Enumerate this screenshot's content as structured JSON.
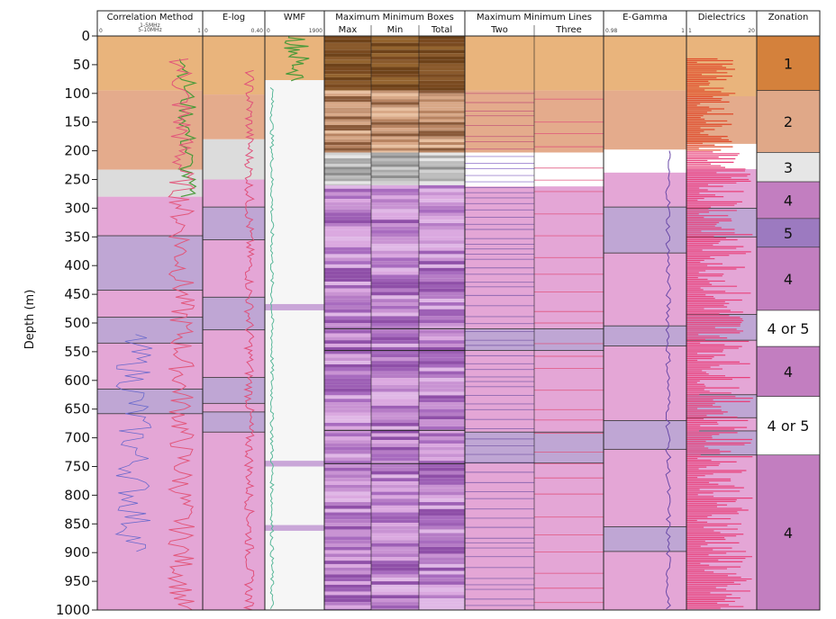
{
  "chart_data": {
    "type": "well-log",
    "ylabel": "Depth (m)",
    "ylim": [
      0,
      1000
    ],
    "y_ticks": [
      0,
      50,
      100,
      150,
      200,
      250,
      300,
      350,
      400,
      450,
      500,
      550,
      600,
      650,
      700,
      750,
      800,
      850,
      900,
      950,
      1000
    ],
    "tracks": [
      {
        "title": "Correlation Method",
        "scale_min": "0",
        "scale_max": "1",
        "legend": [
          "1-5MHz",
          "5-10MHz"
        ]
      },
      {
        "title": "E-log",
        "scale_min": "0",
        "scale_max": "0.40"
      },
      {
        "title": "WMF",
        "scale_min": "0",
        "scale_max": "1900"
      },
      {
        "title": "Maximum Minimum Boxes",
        "subtracks": [
          "Max",
          "Min",
          "Total"
        ]
      },
      {
        "title": "Maximum Minimum Lines",
        "subtracks": [
          "Two",
          "Three"
        ]
      },
      {
        "title": "E-Gamma",
        "scale_min": "0.98",
        "scale_max": "1"
      },
      {
        "title": "Dielectrics",
        "scale_min": "1",
        "scale_max": "20"
      },
      {
        "title": "Zonation"
      }
    ],
    "zonation": [
      {
        "label": "1",
        "top": 0,
        "bottom": 95,
        "color": "#d4813c"
      },
      {
        "label": "2",
        "top": 95,
        "bottom": 203,
        "color": "#e0a888"
      },
      {
        "label": "3",
        "top": 203,
        "bottom": 254,
        "color": "#e6e6e6"
      },
      {
        "label": "4",
        "top": 254,
        "bottom": 318,
        "color": "#c27ec0"
      },
      {
        "label": "5",
        "top": 318,
        "bottom": 368,
        "color": "#9c7ac0"
      },
      {
        "label": "4",
        "top": 368,
        "bottom": 478,
        "color": "#c27ec0"
      },
      {
        "label": "4 or 5",
        "top": 478,
        "bottom": 541,
        "color": "#ffffff"
      },
      {
        "label": "4",
        "top": 541,
        "bottom": 628,
        "color": "#c27ec0"
      },
      {
        "label": "4 or 5",
        "top": 628,
        "bottom": 730,
        "color": "#ffffff"
      },
      {
        "label": "4",
        "top": 730,
        "bottom": 1000,
        "color": "#c27ec0"
      }
    ],
    "colors": {
      "orange": "#e9b47c",
      "salmon": "#e4ab8c",
      "grey": "#dcdcdc",
      "pink": "#e4a6d6",
      "lavender": "#bfa6d4",
      "purple": "#a86bbf",
      "brown": "#7a4a20"
    }
  }
}
